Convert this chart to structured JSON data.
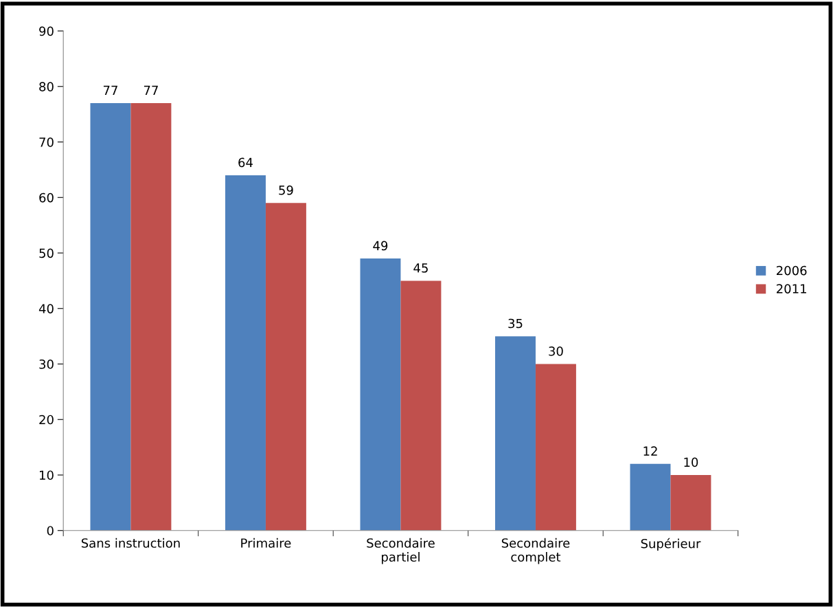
{
  "chart_data": {
    "type": "bar",
    "categories": [
      "Sans instruction",
      "Primaire",
      "Secondaire\npartiel",
      "Secondaire\ncomplet",
      "Supérieur"
    ],
    "series": [
      {
        "name": "2006",
        "color": "#4f81bd",
        "values": [
          77,
          64,
          49,
          35,
          12
        ]
      },
      {
        "name": "2011",
        "color": "#c0504d",
        "values": [
          77,
          59,
          45,
          30,
          10
        ]
      }
    ],
    "ylim": [
      0,
      90
    ],
    "yticks": [
      0,
      10,
      20,
      30,
      40,
      50,
      60,
      70,
      80,
      90
    ],
    "data_labels": true,
    "grid": false,
    "legend": "right"
  }
}
